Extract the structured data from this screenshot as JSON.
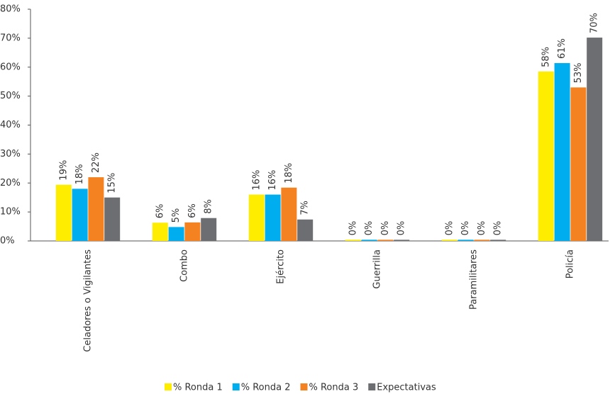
{
  "chart_data": {
    "type": "bar",
    "categories": [
      "Celadores o Vigilantes",
      "Combo",
      "Ejército",
      "Guerrilla",
      "Paramilitares",
      "Policía"
    ],
    "series": [
      {
        "name": "% Ronda 1",
        "color": "#ffed00",
        "values": [
          19.4,
          6.3,
          16,
          0.4,
          0.4,
          58.5
        ],
        "value_labels": [
          "19%",
          "6%",
          "16%",
          "0%",
          "0%",
          "58%"
        ]
      },
      {
        "name": "% Ronda 2",
        "color": "#00aeef",
        "values": [
          18,
          4.8,
          16,
          0.4,
          0.4,
          61.4
        ],
        "value_labels": [
          "18%",
          "5%",
          "16%",
          "0%",
          "0%",
          "61%"
        ]
      },
      {
        "name": "% Ronda 3",
        "color": "#f58220",
        "values": [
          22,
          6.4,
          18.4,
          0.4,
          0.4,
          53
        ],
        "value_labels": [
          "22%",
          "6%",
          "18%",
          "0%",
          "0%",
          "53%"
        ]
      },
      {
        "name": "Expectativas",
        "color": "#6d6e71",
        "values": [
          15,
          7.9,
          7.4,
          0.4,
          0.4,
          70.2
        ],
        "value_labels": [
          "15%",
          "8%",
          "7%",
          "0%",
          "0%",
          "70%"
        ]
      }
    ],
    "ylim": [
      0,
      80
    ],
    "yticks": [
      {
        "value": 0,
        "label": "0%"
      },
      {
        "value": 10,
        "label": "10%"
      },
      {
        "value": 20,
        "label": "20%"
      },
      {
        "value": 30,
        "label": "30%"
      },
      {
        "value": 40,
        "label": "40%"
      },
      {
        "value": 50,
        "label": "50%"
      },
      {
        "value": 60,
        "label": "60%"
      },
      {
        "value": 70,
        "label": "70%"
      },
      {
        "value": 80,
        "label": "80%"
      }
    ],
    "legend": "bottom"
  }
}
